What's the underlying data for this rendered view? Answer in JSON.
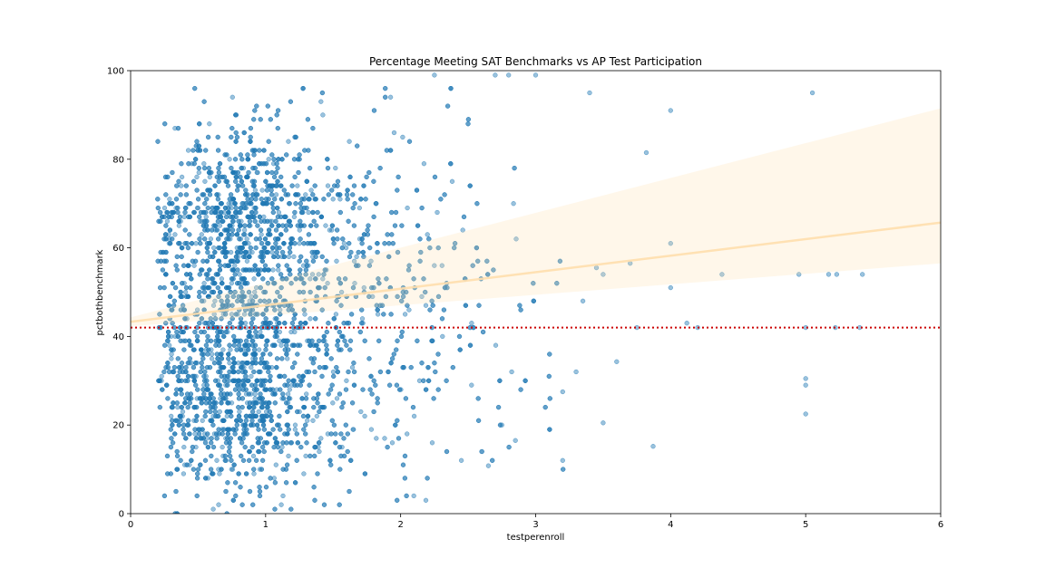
{
  "chart_data": {
    "type": "scatter",
    "title": "Percentage Meeting SAT Benchmarks vs AP Test Participation",
    "xlabel": "testperenroll",
    "ylabel": "pctbothbenchmark",
    "xlim": [
      0,
      6
    ],
    "ylim": [
      0,
      100
    ],
    "xticks": [
      "0",
      "1",
      "2",
      "3",
      "4",
      "5",
      "6"
    ],
    "yticks": [
      "0",
      "20",
      "40",
      "60",
      "80",
      "100"
    ],
    "grid": false,
    "legend": "none",
    "point_color": "#1f77b4",
    "point_alpha": 0.45,
    "approx_point_count": 4200,
    "regression": {
      "color": "#ffdead",
      "start": [
        0,
        43.3
      ],
      "end": [
        6,
        65.7
      ],
      "ci_start": [
        42.3,
        44.3
      ],
      "ci_end": [
        56.5,
        91.5
      ]
    },
    "reference_line": {
      "y": 42,
      "color": "#cc0000",
      "style": "dotted"
    },
    "outliers": [
      [
        5.05,
        95
      ],
      [
        4.0,
        91
      ],
      [
        3.82,
        81.5
      ],
      [
        3.4,
        95
      ],
      [
        4.0,
        61
      ],
      [
        4.0,
        51
      ],
      [
        4.38,
        54
      ],
      [
        4.95,
        54
      ],
      [
        5.17,
        54
      ],
      [
        5.23,
        54
      ],
      [
        5.42,
        54
      ],
      [
        5.0,
        42
      ],
      [
        5.0,
        30.5
      ],
      [
        5.0,
        29
      ],
      [
        5.0,
        22.5
      ],
      [
        3.5,
        20.5
      ],
      [
        3.87,
        15.2
      ],
      [
        3.6,
        34.3
      ],
      [
        3.75,
        42
      ],
      [
        3.7,
        56.5
      ],
      [
        4.12,
        43
      ],
      [
        4.2,
        42
      ],
      [
        5.4,
        42
      ],
      [
        5.22,
        42
      ],
      [
        3.2,
        12
      ],
      [
        3.3,
        32
      ],
      [
        3.2,
        27.5
      ],
      [
        3.35,
        48
      ],
      [
        3.45,
        55.5
      ],
      [
        3.5,
        54
      ],
      [
        2.7,
        99
      ],
      [
        2.8,
        99
      ],
      [
        3.0,
        99
      ],
      [
        2.25,
        99
      ],
      [
        2.6,
        14
      ],
      [
        2.65,
        10.8
      ],
      [
        2.45,
        12
      ],
      [
        2.1,
        22
      ],
      [
        2.75,
        20
      ],
      [
        2.85,
        16.5
      ]
    ]
  }
}
